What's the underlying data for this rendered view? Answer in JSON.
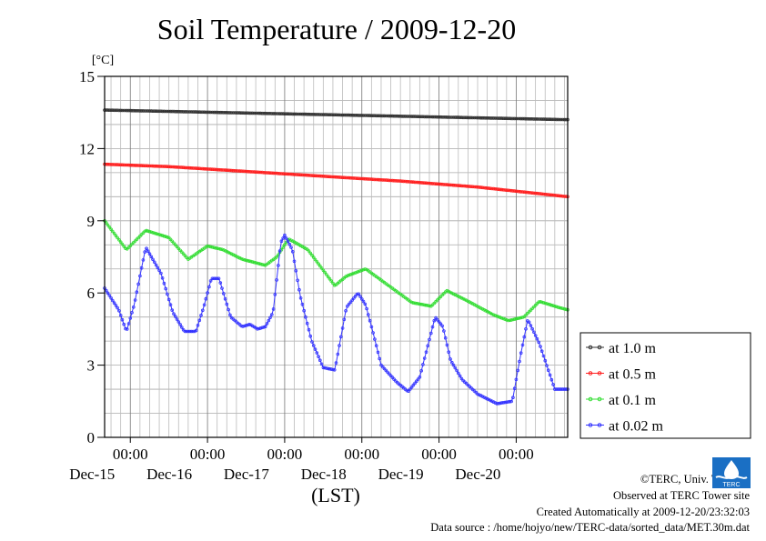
{
  "title": "Soil Temperature / 2009-12-20",
  "chart_data": {
    "type": "line",
    "title": "Soil Temperature / 2009-12-20",
    "ylabel": "[°C]",
    "xlabel": "(LST)",
    "ylim": [
      0,
      15
    ],
    "yticks": [
      0,
      3,
      6,
      9,
      12,
      15
    ],
    "xlim": [
      -0.333,
      5.667
    ],
    "x_unit": "days since 2009-12-15 00:00 LST",
    "xticks": [
      {
        "x": 0,
        "time": "00:00",
        "date": "Dec-15"
      },
      {
        "x": 1,
        "time": "00:00",
        "date": "Dec-16"
      },
      {
        "x": 2,
        "time": "00:00",
        "date": "Dec-17"
      },
      {
        "x": 3,
        "time": "00:00",
        "date": "Dec-18"
      },
      {
        "x": 4,
        "time": "00:00",
        "date": "Dec-19"
      },
      {
        "x": 5,
        "time": "00:00",
        "date": "Dec-20"
      }
    ],
    "grid": true,
    "legend_position": "right",
    "series": [
      {
        "name": "at 1.0 m",
        "color": "#333333",
        "x": [
          -0.333,
          5.667
        ],
        "y": [
          13.6,
          13.2
        ]
      },
      {
        "name": "at 0.5 m",
        "color": "#ff2020",
        "x": [
          -0.333,
          0.5,
          1.5,
          2.5,
          3.5,
          4.5,
          5.667
        ],
        "y": [
          11.35,
          11.25,
          11.05,
          10.85,
          10.65,
          10.4,
          10.0
        ]
      },
      {
        "name": "at 0.1 m",
        "color": "#33dd33",
        "x": [
          -0.333,
          -0.05,
          0.2,
          0.5,
          0.75,
          1.0,
          1.2,
          1.45,
          1.75,
          1.9,
          2.05,
          2.3,
          2.65,
          2.8,
          3.05,
          3.35,
          3.65,
          3.9,
          4.1,
          4.35,
          4.7,
          4.9,
          5.1,
          5.3,
          5.55,
          5.667
        ],
        "y": [
          9.0,
          7.8,
          8.6,
          8.3,
          7.4,
          7.95,
          7.8,
          7.4,
          7.15,
          7.5,
          8.25,
          7.8,
          6.3,
          6.7,
          7.0,
          6.3,
          5.6,
          5.45,
          6.1,
          5.7,
          5.1,
          4.85,
          5.0,
          5.65,
          5.4,
          5.3
        ]
      },
      {
        "name": "at 0.02 m",
        "color": "#3333ff",
        "x": [
          -0.333,
          -0.15,
          -0.05,
          0.05,
          0.2,
          0.4,
          0.55,
          0.7,
          0.85,
          0.95,
          1.05,
          1.15,
          1.3,
          1.45,
          1.55,
          1.65,
          1.75,
          1.85,
          1.95,
          2.0,
          2.1,
          2.2,
          2.35,
          2.5,
          2.65,
          2.8,
          2.95,
          3.05,
          3.15,
          3.25,
          3.45,
          3.6,
          3.75,
          3.95,
          4.05,
          4.15,
          4.3,
          4.5,
          4.75,
          4.95,
          5.05,
          5.15,
          5.3,
          5.5,
          5.667
        ],
        "y": [
          6.2,
          5.3,
          4.4,
          5.5,
          7.9,
          6.8,
          5.2,
          4.4,
          4.4,
          5.4,
          6.6,
          6.6,
          5.0,
          4.6,
          4.7,
          4.5,
          4.6,
          5.2,
          8.1,
          8.4,
          7.8,
          5.9,
          4.0,
          2.9,
          2.8,
          5.4,
          6.0,
          5.5,
          4.3,
          3.0,
          2.3,
          1.9,
          2.5,
          5.0,
          4.6,
          3.2,
          2.4,
          1.8,
          1.4,
          1.5,
          3.3,
          4.9,
          3.9,
          2.0,
          2.0
        ]
      }
    ]
  },
  "credits": [
    "©TERC, Univ. Tsukuba",
    "Observed at TERC Tower site",
    "Created Automatically at 2009-12-20/23:32:03",
    "Data source : /home/hojyo/new/TERC-data/sorted_data/MET.30m.dat"
  ],
  "logo_text": "TERC"
}
